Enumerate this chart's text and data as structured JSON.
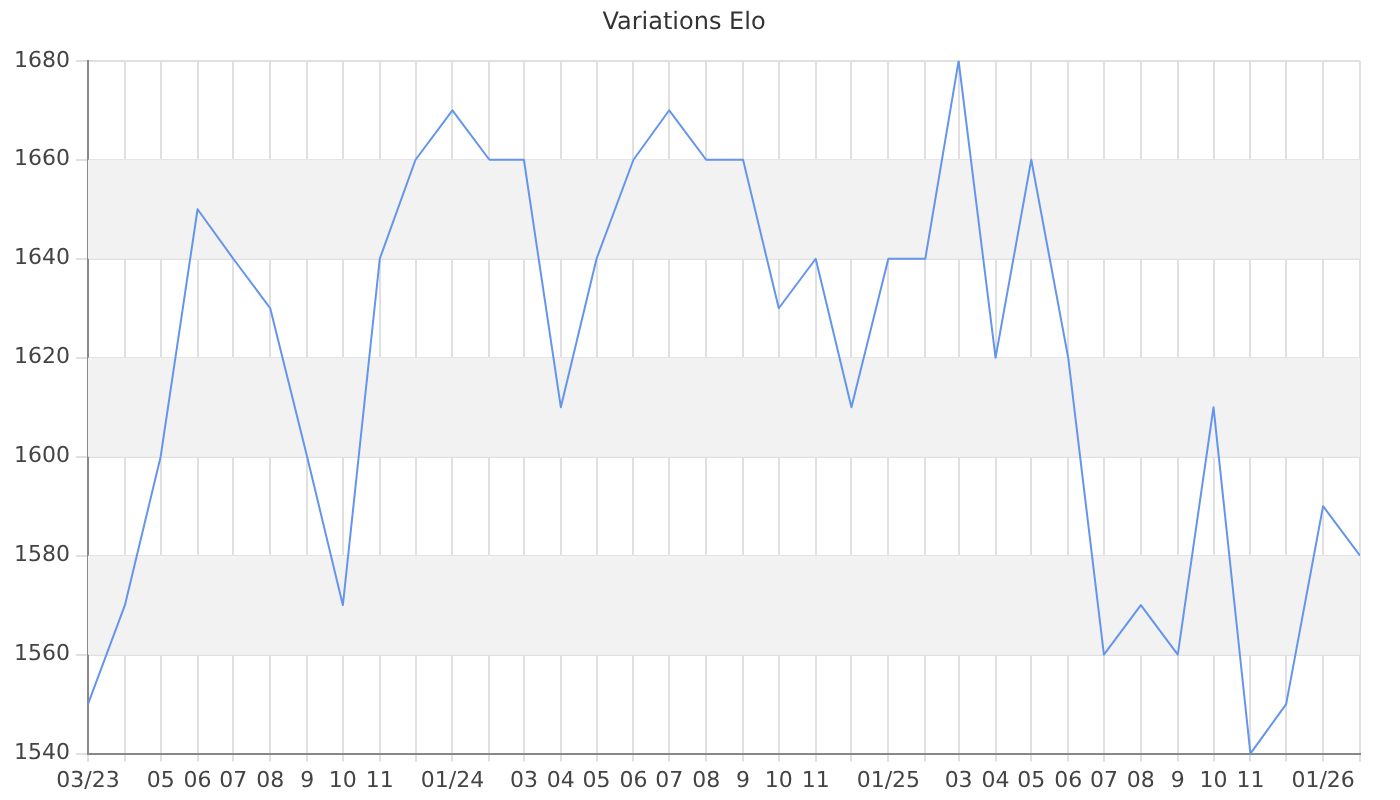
{
  "chart_data": {
    "type": "line",
    "title": "Variations Elo",
    "x": [
      "2023-03",
      "2023-04",
      "2023-05",
      "2023-06",
      "2023-07",
      "2023-08",
      "2023-09",
      "2023-10",
      "2023-11",
      "2023-12",
      "2024-01",
      "2024-02",
      "2024-03",
      "2024-04",
      "2024-05",
      "2024-06",
      "2024-07",
      "2024-08",
      "2024-09",
      "2024-10",
      "2024-11",
      "2024-12",
      "2025-01",
      "2025-02",
      "2025-03",
      "2025-04",
      "2025-05",
      "2025-06",
      "2025-07",
      "2025-08",
      "2025-09",
      "2025-10",
      "2025-11",
      "2025-12",
      "2026-01",
      "2026-02"
    ],
    "series": [
      {
        "color": "#6495ed",
        "values": [
          1550,
          1570,
          1600,
          1650,
          1640,
          1630,
          1600,
          1570,
          1640,
          1660,
          1670,
          1660,
          1660,
          1610,
          1640,
          1660,
          1670,
          1660,
          1660,
          1630,
          1640,
          1610,
          1640,
          1640,
          1680,
          1620,
          1660,
          1620,
          1560,
          1570,
          1560,
          1610,
          1540,
          1550,
          1590,
          1580
        ]
      }
    ],
    "xlim": [
      "2023-03",
      "2026-02"
    ],
    "xticks": [
      {
        "value": "2023-03",
        "label": "03/23"
      },
      {
        "value": "2023-04",
        "label": null
      },
      {
        "value": "2023-05",
        "label": "05"
      },
      {
        "value": "2023-06",
        "label": "06"
      },
      {
        "value": "2023-07",
        "label": "07"
      },
      {
        "value": "2023-08",
        "label": "08"
      },
      {
        "value": "2023-09",
        "label": "9"
      },
      {
        "value": "2023-10",
        "label": "10"
      },
      {
        "value": "2023-11",
        "label": "11"
      },
      {
        "value": "2023-12",
        "label": null
      },
      {
        "value": "2024-01",
        "label": "01/24"
      },
      {
        "value": "2024-02",
        "label": null
      },
      {
        "value": "2024-03",
        "label": "03"
      },
      {
        "value": "2024-04",
        "label": "04"
      },
      {
        "value": "2024-05",
        "label": "05"
      },
      {
        "value": "2024-06",
        "label": "06"
      },
      {
        "value": "2024-07",
        "label": "07"
      },
      {
        "value": "2024-08",
        "label": "08"
      },
      {
        "value": "2024-09",
        "label": "9"
      },
      {
        "value": "2024-10",
        "label": "10"
      },
      {
        "value": "2024-11",
        "label": "11"
      },
      {
        "value": "2024-12",
        "label": null
      },
      {
        "value": "2025-01",
        "label": "01/25"
      },
      {
        "value": "2025-02",
        "label": null
      },
      {
        "value": "2025-03",
        "label": "03"
      },
      {
        "value": "2025-04",
        "label": "04"
      },
      {
        "value": "2025-05",
        "label": "05"
      },
      {
        "value": "2025-06",
        "label": "06"
      },
      {
        "value": "2025-07",
        "label": "07"
      },
      {
        "value": "2025-08",
        "label": "08"
      },
      {
        "value": "2025-09",
        "label": "9"
      },
      {
        "value": "2025-10",
        "label": "10"
      },
      {
        "value": "2025-11",
        "label": "11"
      },
      {
        "value": "2025-12",
        "label": null
      },
      {
        "value": "2026-01",
        "label": "01/26"
      },
      {
        "value": "2026-02",
        "label": null
      }
    ],
    "ylim": [
      1540,
      1680
    ],
    "yticks": [
      1540,
      1560,
      1580,
      1600,
      1620,
      1640,
      1660,
      1680
    ],
    "bands": [
      {
        "axis": "y",
        "from": 1560,
        "to": 1580,
        "color": "#f2f2f2"
      },
      {
        "axis": "y",
        "from": 1600,
        "to": 1620,
        "color": "#f2f2f2"
      },
      {
        "axis": "y",
        "from": 1640,
        "to": 1660,
        "color": "#f2f2f2"
      }
    ],
    "grid": true,
    "legend": false,
    "marker": "none",
    "line_style": "solid"
  }
}
